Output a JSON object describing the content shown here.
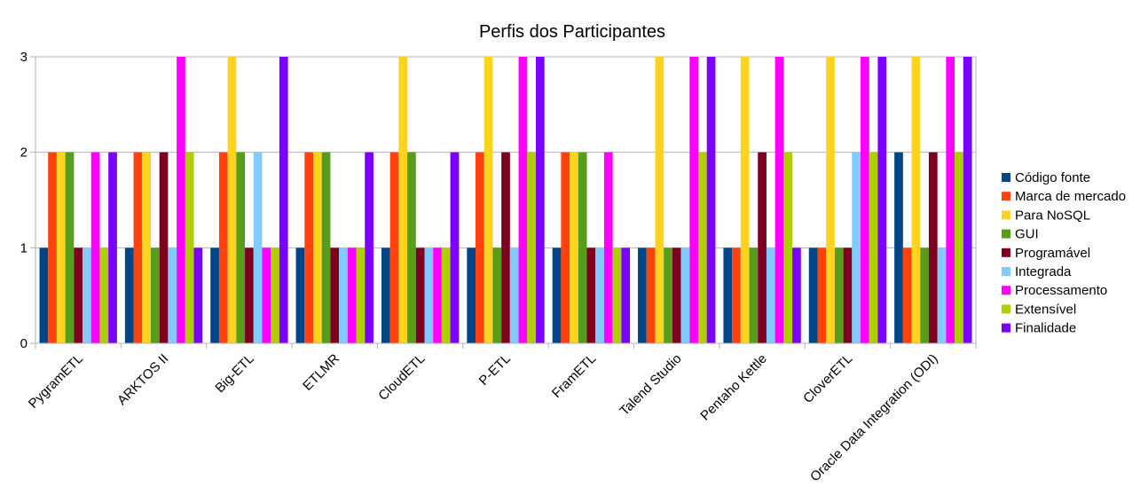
{
  "chart_data": {
    "type": "bar",
    "title": "Perfis dos Participantes",
    "xlabel": "",
    "ylabel": "",
    "ylim": [
      0,
      3
    ],
    "yticks": [
      "0",
      "1",
      "2",
      "3"
    ],
    "grid": "horizontal",
    "legend_position": "right",
    "categories": [
      "PygramETL",
      "ARKTOS II",
      "Big-ETL",
      "ETLMR",
      "CloudETL",
      "P-ETL",
      "FramETL",
      "Talend Studio",
      "Pentaho Kettle",
      "CloverETL",
      "Oracle Data Integration (ODI)"
    ],
    "series": [
      {
        "name": "Código fonte",
        "color": "#004586",
        "values": [
          1,
          1,
          1,
          1,
          1,
          1,
          1,
          1,
          1,
          1,
          2
        ]
      },
      {
        "name": "Marca de mercado",
        "color": "#ff420e",
        "values": [
          2,
          2,
          2,
          2,
          2,
          2,
          2,
          1,
          1,
          1,
          1
        ]
      },
      {
        "name": "Para NoSQL",
        "color": "#ffd320",
        "values": [
          2,
          2,
          3,
          2,
          3,
          3,
          2,
          3,
          3,
          3,
          3
        ]
      },
      {
        "name": "GUI",
        "color": "#579d1c",
        "values": [
          2,
          1,
          2,
          2,
          2,
          1,
          2,
          1,
          1,
          1,
          1
        ]
      },
      {
        "name": "Programável",
        "color": "#7e0021",
        "values": [
          1,
          2,
          1,
          1,
          1,
          2,
          1,
          1,
          2,
          1,
          2
        ]
      },
      {
        "name": "Integrada",
        "color": "#83caff",
        "values": [
          1,
          1,
          2,
          1,
          1,
          1,
          1,
          1,
          1,
          2,
          1
        ]
      },
      {
        "name": "Processamento",
        "color": "#ff00ff",
        "values": [
          2,
          3,
          1,
          1,
          1,
          3,
          2,
          3,
          3,
          3,
          3
        ]
      },
      {
        "name": "Extensível",
        "color": "#aecf00",
        "values": [
          1,
          2,
          1,
          1,
          1,
          2,
          1,
          2,
          2,
          2,
          2
        ]
      },
      {
        "name": "Finalidade",
        "color": "#7b00ff",
        "values": [
          2,
          1,
          3,
          2,
          2,
          3,
          1,
          3,
          1,
          3,
          3
        ]
      }
    ]
  }
}
